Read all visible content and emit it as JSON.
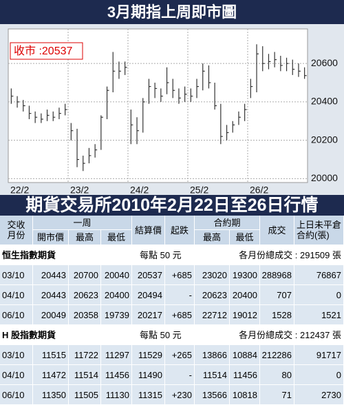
{
  "chart_data": {
    "type": "hlc",
    "title": "3月期指上周即市圖",
    "annotation": "收市 :20537",
    "categories": [
      "22/2",
      null,
      null,
      null,
      null,
      null,
      null,
      null,
      null,
      null,
      "23/2",
      null,
      null,
      null,
      null,
      null,
      null,
      null,
      null,
      null,
      "24/2",
      null,
      null,
      null,
      null,
      null,
      null,
      null,
      null,
      null,
      "25/2",
      null,
      null,
      null,
      null,
      null,
      null,
      null,
      null,
      null,
      "26/2",
      null,
      null,
      null,
      null,
      null,
      null,
      null,
      null,
      null
    ],
    "high": [
      20470,
      20430,
      20410,
      20380,
      20350,
      20340,
      20360,
      20350,
      20370,
      20390,
      20290,
      20260,
      20120,
      20160,
      20180,
      20330,
      20480,
      20660,
      20610,
      20610,
      20360,
      20320,
      20420,
      20520,
      20500,
      20470,
      20580,
      20520,
      20470,
      20480,
      20470,
      20520,
      20600,
      20590,
      20500,
      20390,
      20280,
      20300,
      20350,
      20390,
      20520,
      20700,
      20690,
      20650,
      20660,
      20640,
      20630,
      20620,
      20600,
      20580
    ],
    "low": [
      20390,
      20370,
      20350,
      20310,
      20290,
      20290,
      20300,
      20300,
      20310,
      20330,
      20200,
      20060,
      20040,
      20080,
      20110,
      20150,
      20310,
      20450,
      20520,
      20540,
      20180,
      20180,
      20240,
      20390,
      20420,
      20400,
      20440,
      20420,
      20390,
      20400,
      20400,
      20420,
      20460,
      20470,
      20360,
      20180,
      20200,
      20240,
      20280,
      20300,
      20420,
      20450,
      20560,
      20570,
      20580,
      20560,
      20560,
      20540,
      20530,
      20520
    ],
    "close": [
      20430,
      20400,
      20380,
      20340,
      20320,
      20310,
      20330,
      20320,
      20340,
      20360,
      20250,
      20100,
      20080,
      20120,
      20150,
      20320,
      20460,
      20560,
      20560,
      20580,
      20280,
      20250,
      20400,
      20480,
      20470,
      20430,
      20500,
      20460,
      20420,
      20440,
      20430,
      20480,
      20560,
      20500,
      20380,
      20220,
      20240,
      20280,
      20320,
      20360,
      20480,
      20650,
      20600,
      20610,
      20620,
      20590,
      20600,
      20570,
      20560,
      20537
    ],
    "color": "#333333",
    "ylim": [
      19980,
      20780
    ],
    "yticks": [
      20000,
      20200,
      20400,
      20600
    ],
    "grid": true
  },
  "table": {
    "title": "期貨交易所2010年2月22日至26日行情",
    "header": {
      "month": "交收\n月份",
      "week": "一周",
      "open": "開市價",
      "high": "最高",
      "low": "最低",
      "settle": "結算價",
      "change": "起跌",
      "contract": "合約期",
      "c_high": "最高",
      "c_low": "最低",
      "volume": "成交",
      "oi": "上日未平倉\n合約(張)"
    },
    "sections": [
      {
        "name": "恒生指數期貨",
        "point": "每點 50 元",
        "total": "各月份總成交 : 291509 張",
        "rows": [
          [
            "03/10",
            "20443",
            "20700",
            "20040",
            "20537",
            "+685",
            "23020",
            "19300",
            "288968",
            "76867"
          ],
          [
            "04/10",
            "20443",
            "20623",
            "20400",
            "20494",
            "-",
            "20623",
            "20400",
            "707",
            "0"
          ],
          [
            "06/10",
            "20049",
            "20358",
            "19739",
            "20217",
            "+685",
            "22712",
            "19012",
            "1528",
            "1521"
          ]
        ]
      },
      {
        "name": "H 股指數期貨",
        "point": "每點 50 元",
        "total": "各月份總成交 : 212437 張",
        "rows": [
          [
            "03/10",
            "11515",
            "11722",
            "11297",
            "11529",
            "+265",
            "13866",
            "10884",
            "212286",
            "91717"
          ],
          [
            "04/10",
            "11472",
            "11514",
            "11456",
            "11490",
            "-",
            "11514",
            "11456",
            "80",
            "0"
          ],
          [
            "06/10",
            "11350",
            "11505",
            "11130",
            "11315",
            "+230",
            "13566",
            "10818",
            "71",
            "2730"
          ]
        ]
      }
    ]
  }
}
